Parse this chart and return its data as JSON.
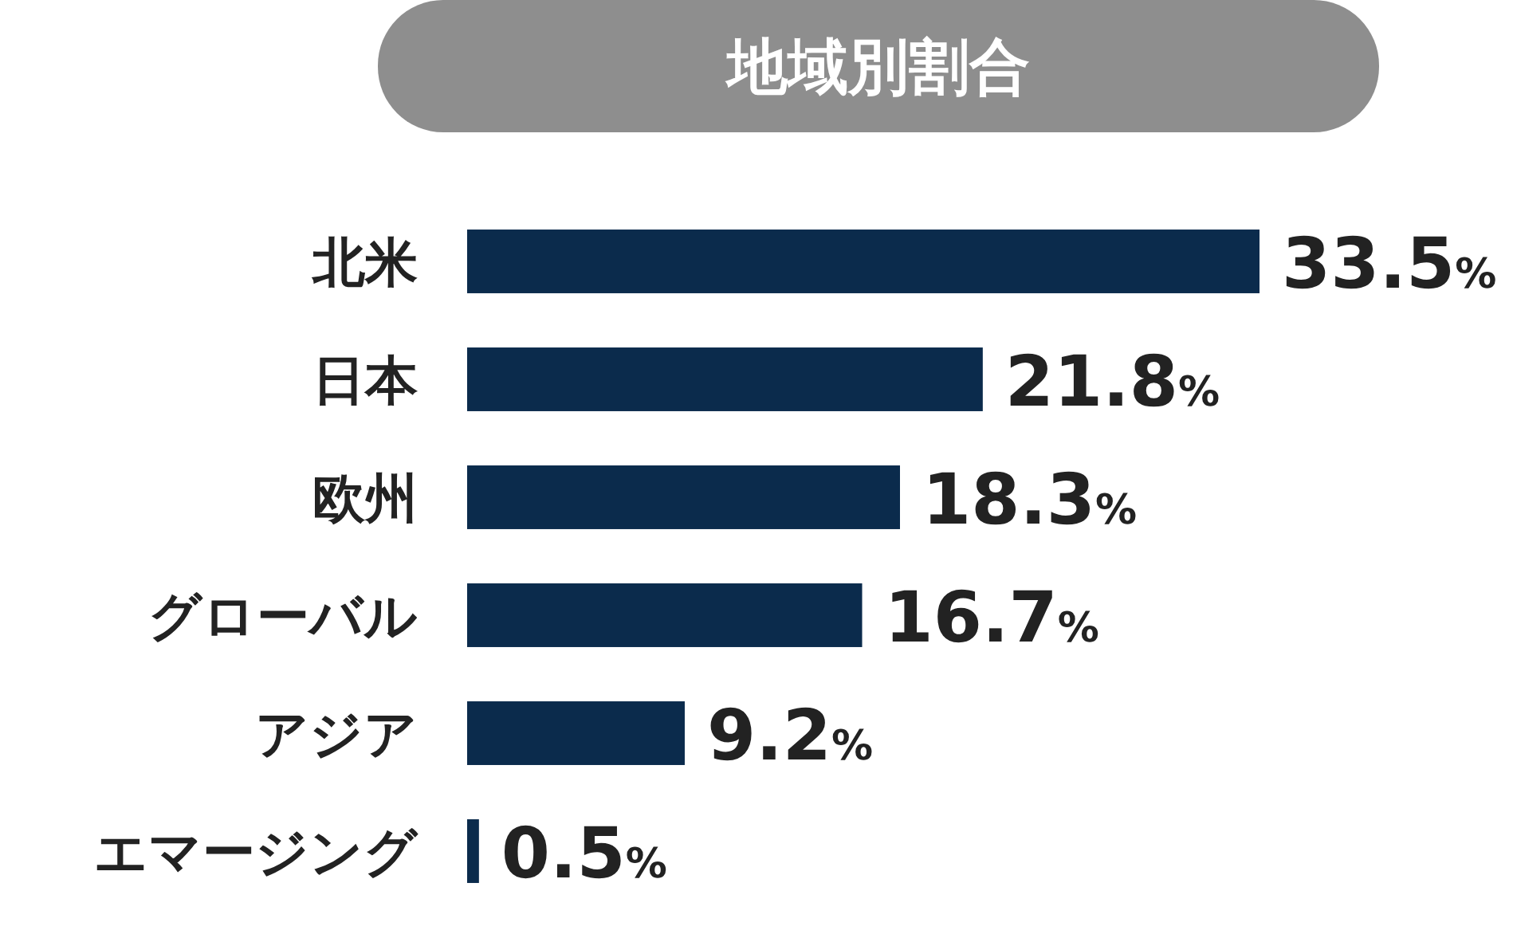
{
  "chart_data": {
    "type": "bar",
    "orientation": "horizontal",
    "title": "地域別割合",
    "categories": [
      "北米",
      "日本",
      "欧州",
      "グローバル",
      "アジア",
      "エマージング"
    ],
    "values": [
      33.5,
      21.8,
      18.3,
      16.7,
      9.2,
      0.5
    ],
    "value_labels": [
      "33.5%",
      "21.8%",
      "18.3%",
      "16.7%",
      "9.2%",
      "0.5%"
    ],
    "color": "#0b2b4c",
    "grid": false
  }
}
